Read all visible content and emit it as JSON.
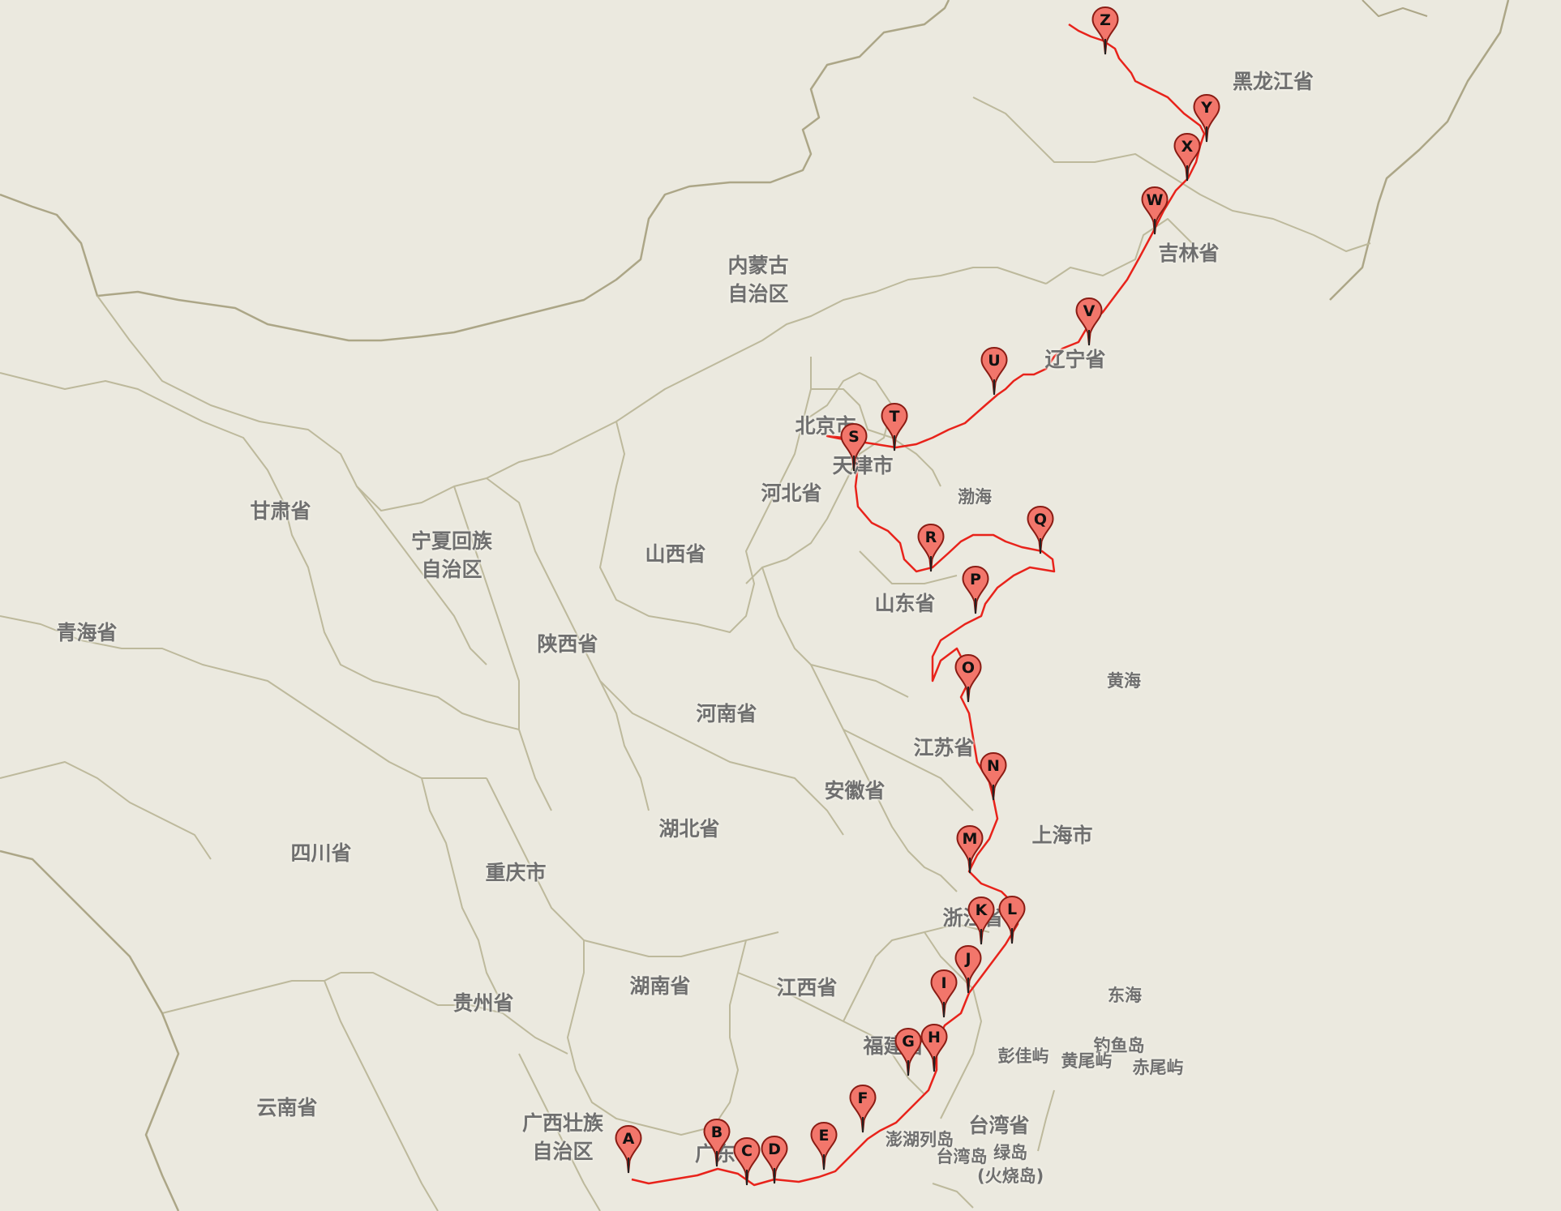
{
  "map": {
    "region_labels": [
      {
        "id": "heilongjiang",
        "text": "黑龙江省"
      },
      {
        "id": "jilin",
        "text": "吉林省"
      },
      {
        "id": "neimenggu",
        "text": "内蒙古\n自治区"
      },
      {
        "id": "liaoning",
        "text": "辽宁省"
      },
      {
        "id": "beijing",
        "text": "北京市"
      },
      {
        "id": "tianjin",
        "text": "天津市"
      },
      {
        "id": "hebei",
        "text": "河北省"
      },
      {
        "id": "bohai",
        "text": "渤海"
      },
      {
        "id": "gansu",
        "text": "甘肃省"
      },
      {
        "id": "ningxia",
        "text": "宁夏回族\n自治区"
      },
      {
        "id": "shanxi",
        "text": "山西省"
      },
      {
        "id": "shandong",
        "text": "山东省"
      },
      {
        "id": "qinghai",
        "text": "青海省"
      },
      {
        "id": "shaanxi",
        "text": "陕西省"
      },
      {
        "id": "huanghai",
        "text": "黄海"
      },
      {
        "id": "henan",
        "text": "河南省"
      },
      {
        "id": "jiangsu",
        "text": "江苏省"
      },
      {
        "id": "anhui",
        "text": "安徽省"
      },
      {
        "id": "shanghai",
        "text": "上海市"
      },
      {
        "id": "hubei",
        "text": "湖北省"
      },
      {
        "id": "sichuan",
        "text": "四川省"
      },
      {
        "id": "chongqing",
        "text": "重庆市"
      },
      {
        "id": "zhejiang",
        "text": "浙江省"
      },
      {
        "id": "hunan",
        "text": "湖南省"
      },
      {
        "id": "jiangxi",
        "text": "江西省"
      },
      {
        "id": "guizhou",
        "text": "贵州省"
      },
      {
        "id": "donghai",
        "text": "东海"
      },
      {
        "id": "fujian",
        "text": "福建省"
      },
      {
        "id": "diaoyudao",
        "text": "钓鱼岛"
      },
      {
        "id": "pengjiayu",
        "text": "彭佳屿"
      },
      {
        "id": "huangweiyu",
        "text": "黄尾屿"
      },
      {
        "id": "chiweiyu",
        "text": "赤尾屿"
      },
      {
        "id": "yunnan",
        "text": "云南省"
      },
      {
        "id": "guangxi",
        "text": "广西壮族\n自治区"
      },
      {
        "id": "taiwan",
        "text": "台湾省"
      },
      {
        "id": "penghu",
        "text": "澎湖列岛"
      },
      {
        "id": "taiwandao",
        "text": "台湾岛"
      },
      {
        "id": "lvdao",
        "text": "绿岛\n(火烧岛)"
      },
      {
        "id": "guangdong",
        "text": "广东"
      }
    ],
    "route": {
      "color": "#e8231b",
      "markers": [
        "A",
        "B",
        "C",
        "D",
        "E",
        "F",
        "G",
        "H",
        "I",
        "J",
        "K",
        "L",
        "M",
        "N",
        "O",
        "P",
        "Q",
        "R",
        "S",
        "T",
        "U",
        "V",
        "W",
        "X",
        "Y",
        "Z"
      ]
    },
    "colors": {
      "background": "#ebe9df",
      "border": "#b4b08f",
      "marker_fill": "#f2766b",
      "marker_stroke": "#8a1c14"
    }
  }
}
